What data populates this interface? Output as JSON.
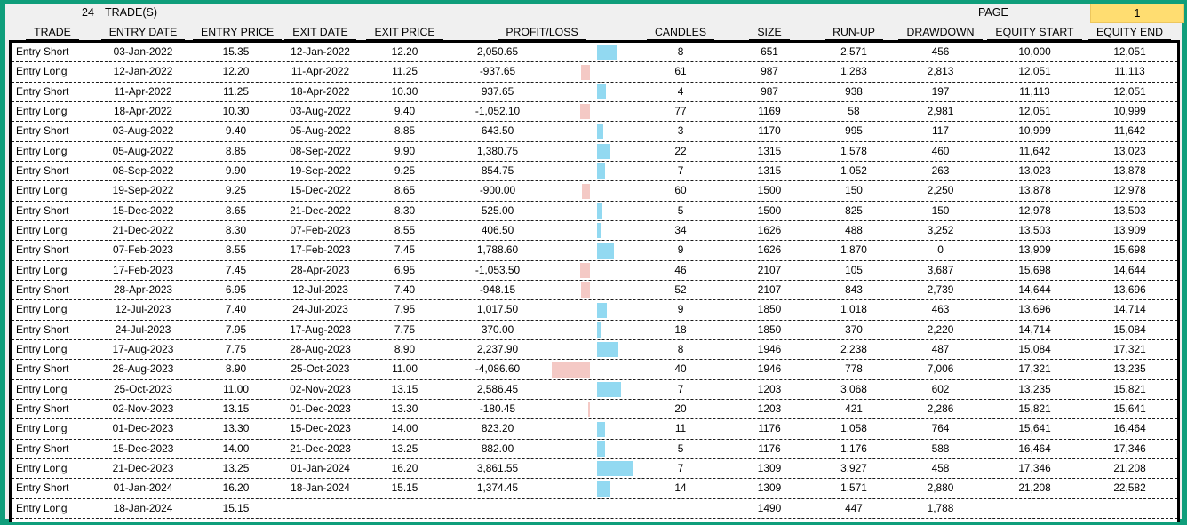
{
  "header": {
    "trade_count": "24",
    "trade_count_label": "TRADE(S)",
    "page_label": "PAGE",
    "page_number": "1"
  },
  "columns": [
    "TRADE",
    "ENTRY DATE",
    "ENTRY PRICE",
    "EXIT DATE",
    "EXIT PRICE",
    "PROFIT/LOSS",
    "CANDLES",
    "SIZE",
    "RUN-UP",
    "DRAWDOWN",
    "EQUITY START",
    "EQUITY END"
  ],
  "colors": {
    "window_border": "#0f9e7b",
    "header_bg": "#f0f0f0",
    "page_box_bg": "#ffdd71",
    "profit_bar": "#92d9f1",
    "loss_bar": "#f4c9c5"
  },
  "rows": [
    {
      "trade": "Entry Short",
      "entry_date": "03-Jan-2022",
      "entry_price": "15.35",
      "exit_date": "12-Jan-2022",
      "exit_price": "12.20",
      "pl": "2,050.65",
      "pl_value": 2050.65,
      "candles": "8",
      "size": "651",
      "runup": "2,571",
      "drawdown": "456",
      "eq_start": "10,000",
      "eq_end": "12,051"
    },
    {
      "trade": "Entry Long",
      "entry_date": "12-Jan-2022",
      "entry_price": "12.20",
      "exit_date": "11-Apr-2022",
      "exit_price": "11.25",
      "pl": "-937.65",
      "pl_value": -937.65,
      "candles": "61",
      "size": "987",
      "runup": "1,283",
      "drawdown": "2,813",
      "eq_start": "12,051",
      "eq_end": "11,113"
    },
    {
      "trade": "Entry Short",
      "entry_date": "11-Apr-2022",
      "entry_price": "11.25",
      "exit_date": "18-Apr-2022",
      "exit_price": "10.30",
      "pl": "937.65",
      "pl_value": 937.65,
      "candles": "4",
      "size": "987",
      "runup": "938",
      "drawdown": "197",
      "eq_start": "11,113",
      "eq_end": "12,051"
    },
    {
      "trade": "Entry Long",
      "entry_date": "18-Apr-2022",
      "entry_price": "10.30",
      "exit_date": "03-Aug-2022",
      "exit_price": "9.40",
      "pl": "-1,052.10",
      "pl_value": -1052.1,
      "candles": "77",
      "size": "1169",
      "runup": "58",
      "drawdown": "2,981",
      "eq_start": "12,051",
      "eq_end": "10,999"
    },
    {
      "trade": "Entry Short",
      "entry_date": "03-Aug-2022",
      "entry_price": "9.40",
      "exit_date": "05-Aug-2022",
      "exit_price": "8.85",
      "pl": "643.50",
      "pl_value": 643.5,
      "candles": "3",
      "size": "1170",
      "runup": "995",
      "drawdown": "117",
      "eq_start": "10,999",
      "eq_end": "11,642"
    },
    {
      "trade": "Entry Long",
      "entry_date": "05-Aug-2022",
      "entry_price": "8.85",
      "exit_date": "08-Sep-2022",
      "exit_price": "9.90",
      "pl": "1,380.75",
      "pl_value": 1380.75,
      "candles": "22",
      "size": "1315",
      "runup": "1,578",
      "drawdown": "460",
      "eq_start": "11,642",
      "eq_end": "13,023"
    },
    {
      "trade": "Entry Short",
      "entry_date": "08-Sep-2022",
      "entry_price": "9.90",
      "exit_date": "19-Sep-2022",
      "exit_price": "9.25",
      "pl": "854.75",
      "pl_value": 854.75,
      "candles": "7",
      "size": "1315",
      "runup": "1,052",
      "drawdown": "263",
      "eq_start": "13,023",
      "eq_end": "13,878"
    },
    {
      "trade": "Entry Long",
      "entry_date": "19-Sep-2022",
      "entry_price": "9.25",
      "exit_date": "15-Dec-2022",
      "exit_price": "8.65",
      "pl": "-900.00",
      "pl_value": -900.0,
      "candles": "60",
      "size": "1500",
      "runup": "150",
      "drawdown": "2,250",
      "eq_start": "13,878",
      "eq_end": "12,978"
    },
    {
      "trade": "Entry Short",
      "entry_date": "15-Dec-2022",
      "entry_price": "8.65",
      "exit_date": "21-Dec-2022",
      "exit_price": "8.30",
      "pl": "525.00",
      "pl_value": 525.0,
      "candles": "5",
      "size": "1500",
      "runup": "825",
      "drawdown": "150",
      "eq_start": "12,978",
      "eq_end": "13,503"
    },
    {
      "trade": "Entry Long",
      "entry_date": "21-Dec-2022",
      "entry_price": "8.30",
      "exit_date": "07-Feb-2023",
      "exit_price": "8.55",
      "pl": "406.50",
      "pl_value": 406.5,
      "candles": "34",
      "size": "1626",
      "runup": "488",
      "drawdown": "3,252",
      "eq_start": "13,503",
      "eq_end": "13,909"
    },
    {
      "trade": "Entry Short",
      "entry_date": "07-Feb-2023",
      "entry_price": "8.55",
      "exit_date": "17-Feb-2023",
      "exit_price": "7.45",
      "pl": "1,788.60",
      "pl_value": 1788.6,
      "candles": "9",
      "size": "1626",
      "runup": "1,870",
      "drawdown": "0",
      "eq_start": "13,909",
      "eq_end": "15,698"
    },
    {
      "trade": "Entry Long",
      "entry_date": "17-Feb-2023",
      "entry_price": "7.45",
      "exit_date": "28-Apr-2023",
      "exit_price": "6.95",
      "pl": "-1,053.50",
      "pl_value": -1053.5,
      "candles": "46",
      "size": "2107",
      "runup": "105",
      "drawdown": "3,687",
      "eq_start": "15,698",
      "eq_end": "14,644"
    },
    {
      "trade": "Entry Short",
      "entry_date": "28-Apr-2023",
      "entry_price": "6.95",
      "exit_date": "12-Jul-2023",
      "exit_price": "7.40",
      "pl": "-948.15",
      "pl_value": -948.15,
      "candles": "52",
      "size": "2107",
      "runup": "843",
      "drawdown": "2,739",
      "eq_start": "14,644",
      "eq_end": "13,696"
    },
    {
      "trade": "Entry Long",
      "entry_date": "12-Jul-2023",
      "entry_price": "7.40",
      "exit_date": "24-Jul-2023",
      "exit_price": "7.95",
      "pl": "1,017.50",
      "pl_value": 1017.5,
      "candles": "9",
      "size": "1850",
      "runup": "1,018",
      "drawdown": "463",
      "eq_start": "13,696",
      "eq_end": "14,714"
    },
    {
      "trade": "Entry Short",
      "entry_date": "24-Jul-2023",
      "entry_price": "7.95",
      "exit_date": "17-Aug-2023",
      "exit_price": "7.75",
      "pl": "370.00",
      "pl_value": 370.0,
      "candles": "18",
      "size": "1850",
      "runup": "370",
      "drawdown": "2,220",
      "eq_start": "14,714",
      "eq_end": "15,084"
    },
    {
      "trade": "Entry Long",
      "entry_date": "17-Aug-2023",
      "entry_price": "7.75",
      "exit_date": "28-Aug-2023",
      "exit_price": "8.90",
      "pl": "2,237.90",
      "pl_value": 2237.9,
      "candles": "8",
      "size": "1946",
      "runup": "2,238",
      "drawdown": "487",
      "eq_start": "15,084",
      "eq_end": "17,321"
    },
    {
      "trade": "Entry Short",
      "entry_date": "28-Aug-2023",
      "entry_price": "8.90",
      "exit_date": "25-Oct-2023",
      "exit_price": "11.00",
      "pl": "-4,086.60",
      "pl_value": -4086.6,
      "candles": "40",
      "size": "1946",
      "runup": "778",
      "drawdown": "7,006",
      "eq_start": "17,321",
      "eq_end": "13,235"
    },
    {
      "trade": "Entry Long",
      "entry_date": "25-Oct-2023",
      "entry_price": "11.00",
      "exit_date": "02-Nov-2023",
      "exit_price": "13.15",
      "pl": "2,586.45",
      "pl_value": 2586.45,
      "candles": "7",
      "size": "1203",
      "runup": "3,068",
      "drawdown": "602",
      "eq_start": "13,235",
      "eq_end": "15,821"
    },
    {
      "trade": "Entry Short",
      "entry_date": "02-Nov-2023",
      "entry_price": "13.15",
      "exit_date": "01-Dec-2023",
      "exit_price": "13.30",
      "pl": "-180.45",
      "pl_value": -180.45,
      "candles": "20",
      "size": "1203",
      "runup": "421",
      "drawdown": "2,286",
      "eq_start": "15,821",
      "eq_end": "15,641"
    },
    {
      "trade": "Entry Long",
      "entry_date": "01-Dec-2023",
      "entry_price": "13.30",
      "exit_date": "15-Dec-2023",
      "exit_price": "14.00",
      "pl": "823.20",
      "pl_value": 823.2,
      "candles": "11",
      "size": "1176",
      "runup": "1,058",
      "drawdown": "764",
      "eq_start": "15,641",
      "eq_end": "16,464"
    },
    {
      "trade": "Entry Short",
      "entry_date": "15-Dec-2023",
      "entry_price": "14.00",
      "exit_date": "21-Dec-2023",
      "exit_price": "13.25",
      "pl": "882.00",
      "pl_value": 882.0,
      "candles": "5",
      "size": "1176",
      "runup": "1,176",
      "drawdown": "588",
      "eq_start": "16,464",
      "eq_end": "17,346"
    },
    {
      "trade": "Entry Long",
      "entry_date": "21-Dec-2023",
      "entry_price": "13.25",
      "exit_date": "01-Jan-2024",
      "exit_price": "16.20",
      "pl": "3,861.55",
      "pl_value": 3861.55,
      "candles": "7",
      "size": "1309",
      "runup": "3,927",
      "drawdown": "458",
      "eq_start": "17,346",
      "eq_end": "21,208"
    },
    {
      "trade": "Entry Short",
      "entry_date": "01-Jan-2024",
      "entry_price": "16.20",
      "exit_date": "18-Jan-2024",
      "exit_price": "15.15",
      "pl": "1,374.45",
      "pl_value": 1374.45,
      "candles": "14",
      "size": "1309",
      "runup": "1,571",
      "drawdown": "2,880",
      "eq_start": "21,208",
      "eq_end": "22,582"
    },
    {
      "trade": "Entry Long",
      "entry_date": "18-Jan-2024",
      "entry_price": "15.15",
      "exit_date": "",
      "exit_price": "",
      "pl": "",
      "pl_value": null,
      "candles": "",
      "size": "1490",
      "runup": "447",
      "drawdown": "1,788",
      "eq_start": "",
      "eq_end": ""
    }
  ]
}
